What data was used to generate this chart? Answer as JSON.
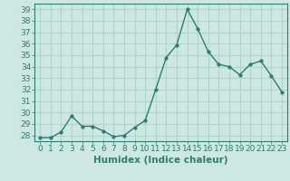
{
  "x": [
    0,
    1,
    2,
    3,
    4,
    5,
    6,
    7,
    8,
    9,
    10,
    11,
    12,
    13,
    14,
    15,
    16,
    17,
    18,
    19,
    20,
    21,
    22,
    23
  ],
  "y": [
    27.8,
    27.8,
    28.3,
    29.7,
    28.8,
    28.8,
    28.4,
    27.9,
    28.0,
    28.7,
    29.3,
    32.0,
    34.8,
    35.9,
    39.0,
    37.3,
    35.3,
    34.2,
    34.0,
    33.3,
    34.2,
    34.5,
    33.2,
    31.8
  ],
  "line_color": "#2e7d6e",
  "marker": "o",
  "marker_size": 2.5,
  "linewidth": 1.0,
  "xlabel": "Humidex (Indice chaleur)",
  "xlim": [
    -0.5,
    23.5
  ],
  "ylim": [
    27.5,
    39.5
  ],
  "yticks": [
    28,
    29,
    30,
    31,
    32,
    33,
    34,
    35,
    36,
    37,
    38,
    39
  ],
  "xticks": [
    0,
    1,
    2,
    3,
    4,
    5,
    6,
    7,
    8,
    9,
    10,
    11,
    12,
    13,
    14,
    15,
    16,
    17,
    18,
    19,
    20,
    21,
    22,
    23
  ],
  "bg_color": "#cde8e3",
  "grid_color": "#b0d5ce",
  "tick_color": "#2e7d6e",
  "label_color": "#2e7d6e",
  "font_size": 6.5,
  "xlabel_fontsize": 7.5
}
